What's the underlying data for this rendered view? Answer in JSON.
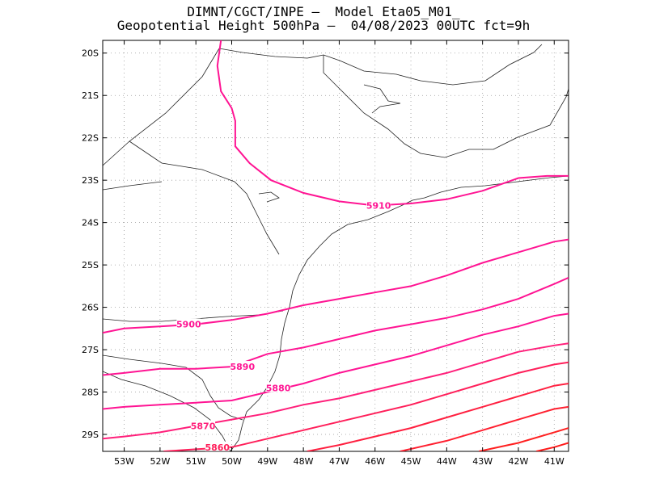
{
  "title": {
    "line1": "DIMNT/CGCT/INPE –  Model Eta05_M01_",
    "line2": "Geopotential Height 500hPa –  04/08/2023 00UTC fct=9h"
  },
  "axes": {
    "lat_labels": [
      "20S",
      "21S",
      "22S",
      "23S",
      "24S",
      "25S",
      "26S",
      "27S",
      "28S",
      "29S"
    ],
    "lon_labels": [
      "53W",
      "52W",
      "51W",
      "50W",
      "49W",
      "48W",
      "47W",
      "46W",
      "45W",
      "44W",
      "43W",
      "42W",
      "41W"
    ],
    "lat_values": [
      -20,
      -21,
      -22,
      -23,
      -24,
      -25,
      -26,
      -27,
      -28,
      -29
    ],
    "lon_values": [
      -53,
      -52,
      -51,
      -50,
      -49,
      -48,
      -47,
      -46,
      -45,
      -44,
      -43,
      -42,
      -41
    ],
    "lon_range": [
      -53.6,
      -40.6
    ],
    "lat_range": [
      -29.4,
      -19.7
    ],
    "grid": true
  },
  "contours": [
    {
      "label": "5910",
      "color": "#ff1493",
      "points": [
        [
          -50.3,
          -19.7
        ],
        [
          -50.4,
          -20.3
        ],
        [
          -50.3,
          -20.9
        ],
        [
          -50.0,
          -21.3
        ],
        [
          -49.9,
          -21.6
        ],
        [
          -49.9,
          -22.2
        ],
        [
          -49.5,
          -22.6
        ],
        [
          -48.9,
          -23.0
        ],
        [
          -48.0,
          -23.3
        ],
        [
          -47.0,
          -23.5
        ],
        [
          -46.0,
          -23.6
        ],
        [
          -45.0,
          -23.55
        ],
        [
          -44.0,
          -23.45
        ],
        [
          -43.0,
          -23.25
        ],
        [
          -42.0,
          -22.95
        ],
        [
          -41.2,
          -22.9
        ],
        [
          -40.6,
          -22.9
        ]
      ],
      "label_at": [
        -45.9,
        -23.6
      ]
    },
    {
      "label": "5900",
      "color": "#ff1493",
      "points": [
        [
          -53.6,
          -26.6
        ],
        [
          -53.0,
          -26.5
        ],
        [
          -52.0,
          -26.45
        ],
        [
          -51.0,
          -26.4
        ],
        [
          -50.0,
          -26.3
        ],
        [
          -49.0,
          -26.15
        ],
        [
          -48.0,
          -25.95
        ],
        [
          -47.0,
          -25.8
        ],
        [
          -46.0,
          -25.65
        ],
        [
          -45.0,
          -25.5
        ],
        [
          -44.0,
          -25.25
        ],
        [
          -43.0,
          -24.95
        ],
        [
          -42.0,
          -24.7
        ],
        [
          -41.0,
          -24.45
        ],
        [
          -40.6,
          -24.4
        ]
      ],
      "label_at": [
        -51.2,
        -26.4
      ]
    },
    {
      "label": "5890",
      "color": "#ff1493",
      "points": [
        [
          -53.6,
          -27.6
        ],
        [
          -53.0,
          -27.55
        ],
        [
          -52.0,
          -27.45
        ],
        [
          -51.0,
          -27.45
        ],
        [
          -50.0,
          -27.4
        ],
        [
          -49.0,
          -27.1
        ],
        [
          -48.0,
          -26.95
        ],
        [
          -47.0,
          -26.75
        ],
        [
          -46.0,
          -26.55
        ],
        [
          -45.0,
          -26.4
        ],
        [
          -44.0,
          -26.25
        ],
        [
          -43.0,
          -26.05
        ],
        [
          -42.0,
          -25.8
        ],
        [
          -41.0,
          -25.45
        ],
        [
          -40.6,
          -25.3
        ]
      ],
      "label_at": [
        -49.7,
        -27.4
      ]
    },
    {
      "label": "5880",
      "color": "#ff1493",
      "points": [
        [
          -53.6,
          -28.4
        ],
        [
          -53.0,
          -28.35
        ],
        [
          -52.0,
          -28.3
        ],
        [
          -51.0,
          -28.25
        ],
        [
          -50.0,
          -28.2
        ],
        [
          -49.0,
          -28.0
        ],
        [
          -48.0,
          -27.8
        ],
        [
          -47.0,
          -27.55
        ],
        [
          -46.0,
          -27.35
        ],
        [
          -45.0,
          -27.15
        ],
        [
          -44.0,
          -26.9
        ],
        [
          -43.0,
          -26.65
        ],
        [
          -42.0,
          -26.45
        ],
        [
          -41.0,
          -26.2
        ],
        [
          -40.6,
          -26.15
        ]
      ],
      "label_at": [
        -48.7,
        -27.9
      ]
    },
    {
      "label": "5870",
      "color": "#ff1f7a",
      "points": [
        [
          -53.6,
          -29.1
        ],
        [
          -53.0,
          -29.05
        ],
        [
          -52.0,
          -28.95
        ],
        [
          -51.0,
          -28.8
        ],
        [
          -50.0,
          -28.65
        ],
        [
          -49.0,
          -28.5
        ],
        [
          -48.0,
          -28.3
        ],
        [
          -47.0,
          -28.15
        ],
        [
          -46.0,
          -27.95
        ],
        [
          -45.0,
          -27.75
        ],
        [
          -44.0,
          -27.55
        ],
        [
          -43.0,
          -27.3
        ],
        [
          -42.0,
          -27.05
        ],
        [
          -41.0,
          -26.9
        ],
        [
          -40.6,
          -26.85
        ]
      ],
      "label_at": [
        -50.8,
        -28.8
      ]
    },
    {
      "label": "5860",
      "color": "#ff1f5a",
      "points": [
        [
          -51.9,
          -29.4
        ],
        [
          -51.0,
          -29.35
        ],
        [
          -50.0,
          -29.3
        ],
        [
          -49.0,
          -29.1
        ],
        [
          -48.0,
          -28.9
        ],
        [
          -47.0,
          -28.7
        ],
        [
          -46.0,
          -28.5
        ],
        [
          -45.0,
          -28.3
        ],
        [
          -44.0,
          -28.05
        ],
        [
          -43.0,
          -27.8
        ],
        [
          -42.0,
          -27.55
        ],
        [
          -41.0,
          -27.35
        ],
        [
          -40.6,
          -27.3
        ]
      ],
      "label_at": [
        -50.4,
        -29.3
      ]
    },
    {
      "label": "",
      "color": "#ff2040",
      "points": [
        [
          -47.9,
          -29.4
        ],
        [
          -47.0,
          -29.25
        ],
        [
          -46.0,
          -29.05
        ],
        [
          -45.0,
          -28.85
        ],
        [
          -44.0,
          -28.6
        ],
        [
          -43.0,
          -28.35
        ],
        [
          -42.0,
          -28.1
        ],
        [
          -41.0,
          -27.85
        ],
        [
          -40.6,
          -27.8
        ]
      ]
    },
    {
      "label": "",
      "color": "#ff2030",
      "points": [
        [
          -45.3,
          -29.4
        ],
        [
          -44.0,
          -29.15
        ],
        [
          -43.0,
          -28.9
        ],
        [
          -42.0,
          -28.65
        ],
        [
          -41.0,
          -28.4
        ],
        [
          -40.6,
          -28.35
        ]
      ]
    },
    {
      "label": "",
      "color": "#ff2020",
      "points": [
        [
          -43.1,
          -29.4
        ],
        [
          -42.0,
          -29.2
        ],
        [
          -41.0,
          -28.95
        ],
        [
          -40.6,
          -28.85
        ]
      ]
    },
    {
      "label": "",
      "color": "#ff1a1a",
      "points": [
        [
          -41.5,
          -29.4
        ],
        [
          -41.0,
          -29.3
        ],
        [
          -40.6,
          -29.2
        ]
      ]
    }
  ]
}
